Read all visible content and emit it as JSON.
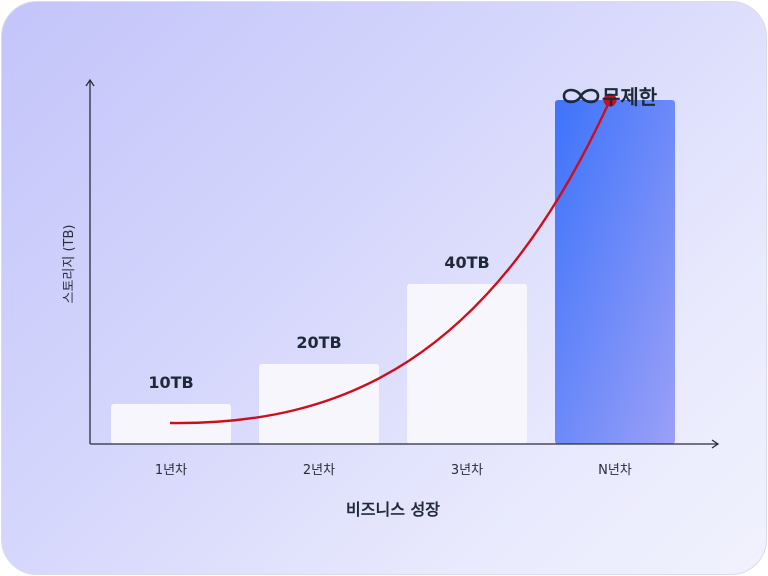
{
  "chart_data": {
    "type": "bar",
    "categories": [
      "1년차",
      "2년차",
      "3년차",
      "N년차"
    ],
    "values": [
      10,
      20,
      40,
      86
    ],
    "value_labels": [
      "10TB",
      "20TB",
      "40TB",
      ""
    ],
    "unlimited_label": "무제한",
    "xlabel": "비즈니스 성장",
    "ylabel": "스토리지 (TB)",
    "ylim": [
      0,
      96
    ],
    "grid": false,
    "colors": {
      "bar": "#f6f6fc",
      "highlight_start": "#3d73fb",
      "highlight_end": "#9ba0f7",
      "curve": "#cc0f1d",
      "axis": "#2b2d3a"
    }
  }
}
